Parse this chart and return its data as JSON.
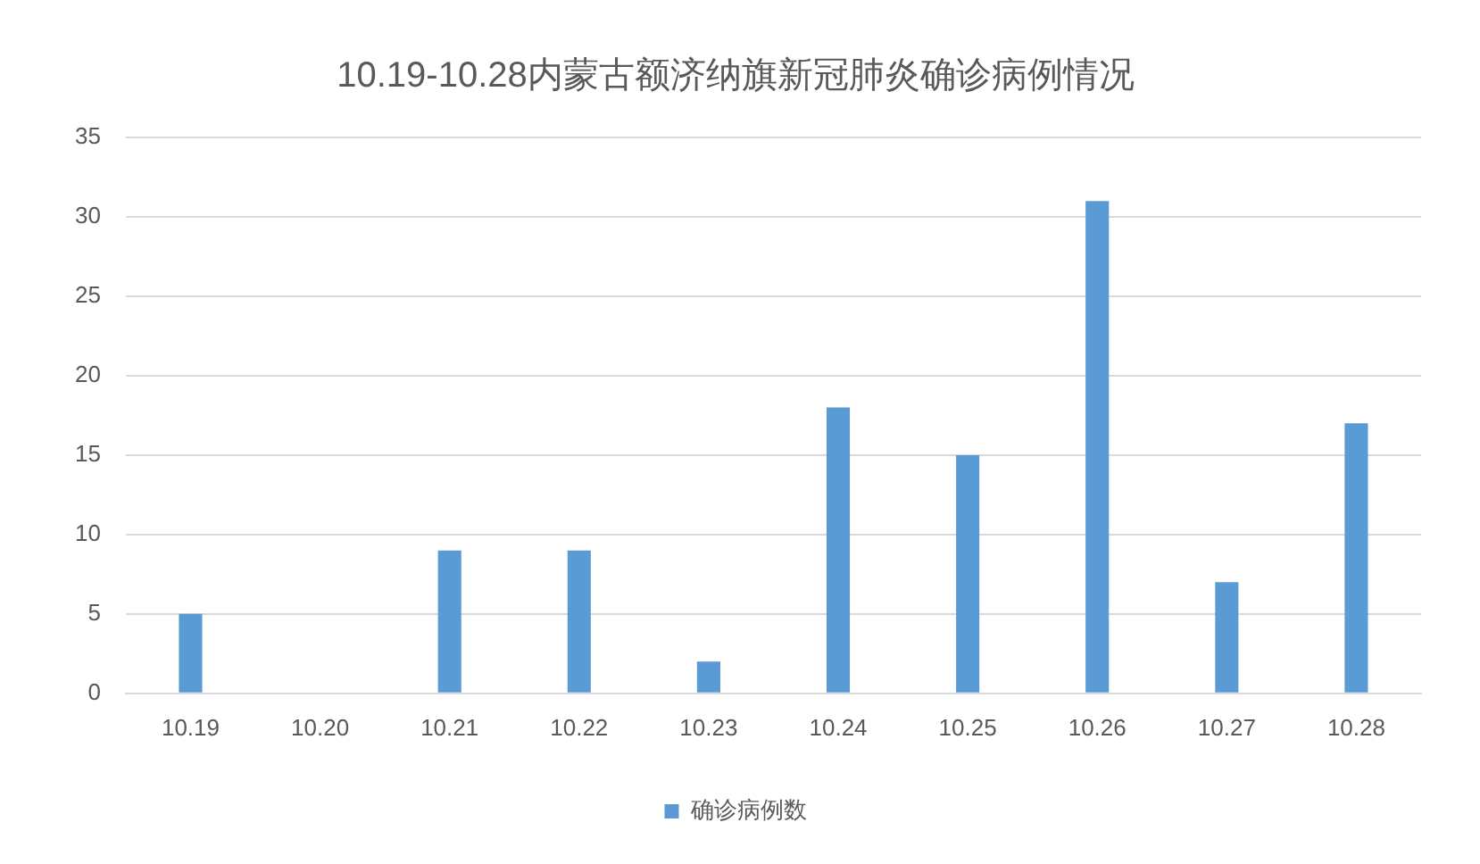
{
  "chart_data": {
    "type": "bar",
    "title": "10.19-10.28内蒙古额济纳旗新冠肺炎确诊病例情况",
    "categories": [
      "10.19",
      "10.20",
      "10.21",
      "10.22",
      "10.23",
      "10.24",
      "10.25",
      "10.26",
      "10.27",
      "10.28"
    ],
    "series": [
      {
        "name": "确诊病例数",
        "color": "#5b9bd5",
        "values": [
          5,
          0,
          9,
          9,
          2,
          18,
          15,
          31,
          7,
          17
        ]
      }
    ],
    "ylim": [
      0,
      35
    ],
    "yticks": [
      0,
      5,
      10,
      15,
      20,
      25,
      30,
      35
    ],
    "grid": "y",
    "legend": "bottom"
  }
}
